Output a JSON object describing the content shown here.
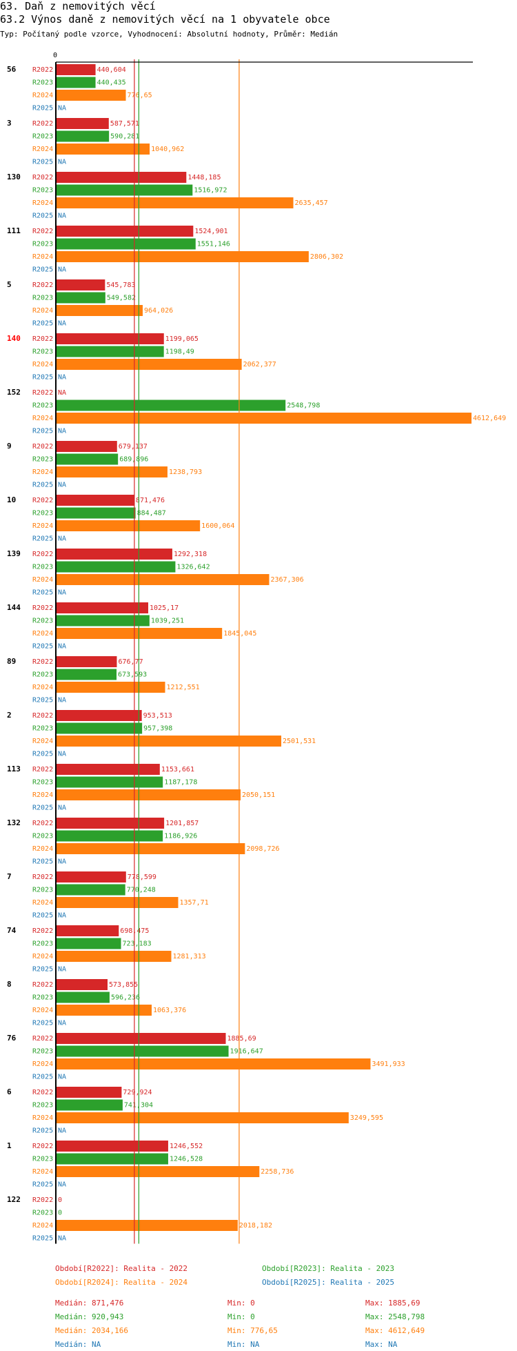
{
  "heading": {
    "title": "63. Daň z nemovitých věcí",
    "subtitle": "63.2 Výnos daně z nemovitých věcí na 1 obyvatele obce",
    "params": "Typ: Počítaný podle vzorce, Vyhodnocení: Absolutní hodnoty, Průměr: Medián"
  },
  "colors": {
    "R2022": "#d62728",
    "R2023": "#2ca02c",
    "R2024": "#ff7f0e",
    "R2025": "#1f77b4",
    "highlight": "#ff0000"
  },
  "chart_data": {
    "type": "bar",
    "orientation": "horizontal",
    "zero_label": "0",
    "xlim": [
      0,
      4612.649
    ],
    "series_names": [
      "R2022",
      "R2023",
      "R2024",
      "R2025"
    ],
    "highlight_group": "140",
    "groups": [
      {
        "id": "56",
        "labels": [
          "440,604",
          "440,435",
          "776,65",
          "NA"
        ],
        "values": [
          440.604,
          440.435,
          776.65,
          null
        ]
      },
      {
        "id": "3",
        "labels": [
          "587,571",
          "590,281",
          "1040,962",
          "NA"
        ],
        "values": [
          587.571,
          590.281,
          1040.962,
          null
        ]
      },
      {
        "id": "130",
        "labels": [
          "1448,185",
          "1516,972",
          "2635,457",
          "NA"
        ],
        "values": [
          1448.185,
          1516.972,
          2635.457,
          null
        ]
      },
      {
        "id": "111",
        "labels": [
          "1524,901",
          "1551,146",
          "2806,302",
          "NA"
        ],
        "values": [
          1524.901,
          1551.146,
          2806.302,
          null
        ]
      },
      {
        "id": "5",
        "labels": [
          "545,783",
          "549,582",
          "964,026",
          "NA"
        ],
        "values": [
          545.783,
          549.582,
          964.026,
          null
        ]
      },
      {
        "id": "140",
        "labels": [
          "1199,065",
          "1198,49",
          "2062,377",
          "NA"
        ],
        "values": [
          1199.065,
          1198.49,
          2062.377,
          null
        ]
      },
      {
        "id": "152",
        "labels": [
          "NA",
          "2548,798",
          "4612,649",
          "NA"
        ],
        "values": [
          null,
          2548.798,
          4612.649,
          null
        ]
      },
      {
        "id": "9",
        "labels": [
          "679,137",
          "689,896",
          "1238,793",
          "NA"
        ],
        "values": [
          679.137,
          689.896,
          1238.793,
          null
        ]
      },
      {
        "id": "10",
        "labels": [
          "871,476",
          "884,487",
          "1600,064",
          "NA"
        ],
        "values": [
          871.476,
          884.487,
          1600.064,
          null
        ]
      },
      {
        "id": "139",
        "labels": [
          "1292,318",
          "1326,642",
          "2367,306",
          "NA"
        ],
        "values": [
          1292.318,
          1326.642,
          2367.306,
          null
        ]
      },
      {
        "id": "144",
        "labels": [
          "1025,17",
          "1039,251",
          "1845,045",
          "NA"
        ],
        "values": [
          1025.17,
          1039.251,
          1845.045,
          null
        ]
      },
      {
        "id": "89",
        "labels": [
          "676,77",
          "673,593",
          "1212,551",
          "NA"
        ],
        "values": [
          676.77,
          673.593,
          1212.551,
          null
        ]
      },
      {
        "id": "2",
        "labels": [
          "953,513",
          "957,398",
          "2501,531",
          "NA"
        ],
        "values": [
          953.513,
          957.398,
          2501.531,
          null
        ]
      },
      {
        "id": "113",
        "labels": [
          "1153,661",
          "1187,178",
          "2050,151",
          "NA"
        ],
        "values": [
          1153.661,
          1187.178,
          2050.151,
          null
        ]
      },
      {
        "id": "132",
        "labels": [
          "1201,857",
          "1186,926",
          "2098,726",
          "NA"
        ],
        "values": [
          1201.857,
          1186.926,
          2098.726,
          null
        ]
      },
      {
        "id": "7",
        "labels": [
          "778,599",
          "770,248",
          "1357,71",
          "NA"
        ],
        "values": [
          778.599,
          770.248,
          1357.71,
          null
        ]
      },
      {
        "id": "74",
        "labels": [
          "698,475",
          "723,183",
          "1281,313",
          "NA"
        ],
        "values": [
          698.475,
          723.183,
          1281.313,
          null
        ]
      },
      {
        "id": "8",
        "labels": [
          "573,855",
          "596,236",
          "1063,376",
          "NA"
        ],
        "values": [
          573.855,
          596.236,
          1063.376,
          null
        ]
      },
      {
        "id": "76",
        "labels": [
          "1885,69",
          "1916,647",
          "3491,933",
          "NA"
        ],
        "values": [
          1885.69,
          1916.647,
          3491.933,
          null
        ]
      },
      {
        "id": "6",
        "labels": [
          "729,924",
          "741,304",
          "3249,595",
          "NA"
        ],
        "values": [
          729.924,
          741.304,
          3249.595,
          null
        ]
      },
      {
        "id": "1",
        "labels": [
          "1246,552",
          "1246,528",
          "2258,736",
          "NA"
        ],
        "values": [
          1246.552,
          1246.528,
          2258.736,
          null
        ]
      },
      {
        "id": "122",
        "labels": [
          "0",
          "0",
          "2018,182",
          "NA"
        ],
        "values": [
          0,
          0,
          2018.182,
          null
        ]
      }
    ],
    "medians": [
      871.476,
      920.943,
      2034.166,
      null
    ]
  },
  "legend": [
    "Období[R2022]: Realita - 2022",
    "Období[R2023]: Realita - 2023",
    "Období[R2024]: Realita - 2024",
    "Období[R2025]: Realita - 2025"
  ],
  "stats": [
    {
      "median": "Medián: 871,476",
      "min": "Min: 0",
      "max": "Max: 1885,69"
    },
    {
      "median": "Medián: 920,943",
      "min": "Min: 0",
      "max": "Max: 2548,798"
    },
    {
      "median": "Medián: 2034,166",
      "min": "Min: 776,65",
      "max": "Max: 4612,649"
    },
    {
      "median": "Medián: NA",
      "min": "Min: NA",
      "max": "Max: NA"
    }
  ]
}
